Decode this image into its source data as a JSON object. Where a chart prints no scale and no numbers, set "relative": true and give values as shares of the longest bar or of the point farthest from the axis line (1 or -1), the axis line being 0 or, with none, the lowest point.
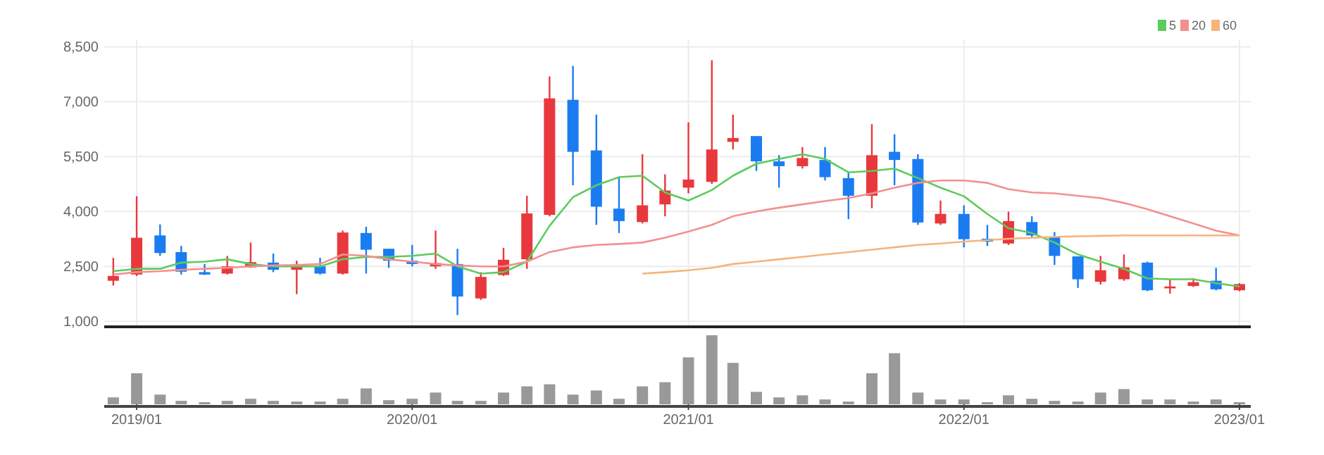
{
  "chart_data": [
    {
      "type": "candlestick",
      "x": [
        "2018-12",
        "2019-01",
        "2019-02",
        "2019-03",
        "2019-04",
        "2019-05",
        "2019-06",
        "2019-07",
        "2019-08",
        "2019-09",
        "2019-10",
        "2019-11",
        "2019-12",
        "2020-01",
        "2020-02",
        "2020-03",
        "2020-04",
        "2020-05",
        "2020-06",
        "2020-07",
        "2020-08",
        "2020-09",
        "2020-10",
        "2020-11",
        "2020-12",
        "2021-01",
        "2021-02",
        "2021-03",
        "2021-04",
        "2021-05",
        "2021-06",
        "2021-07",
        "2021-08",
        "2021-09",
        "2021-10",
        "2021-11",
        "2021-12",
        "2022-01",
        "2022-02",
        "2022-03",
        "2022-04",
        "2022-05",
        "2022-06",
        "2022-07",
        "2022-08",
        "2022-09",
        "2022-10",
        "2022-11",
        "2022-12",
        "2023-01"
      ],
      "ohlc": [
        [
          2108,
          2734,
          1978,
          2239
        ],
        [
          2278,
          4417,
          2239,
          3282
        ],
        [
          3347,
          3647,
          2787,
          2865
        ],
        [
          2891,
          3060,
          2278,
          2356
        ],
        [
          2343,
          2565,
          2265,
          2278
        ],
        [
          2304,
          2787,
          2278,
          2500
        ],
        [
          2474,
          3152,
          2461,
          2617
        ],
        [
          2604,
          2852,
          2343,
          2408
        ],
        [
          2408,
          2656,
          1743,
          2539
        ],
        [
          2500,
          2734,
          2278,
          2304
        ],
        [
          2304,
          3478,
          2278,
          3426
        ],
        [
          3413,
          3582,
          2304,
          2956
        ],
        [
          2982,
          2982,
          2461,
          2656
        ],
        [
          2656,
          3087,
          2500,
          2565
        ],
        [
          2500,
          3478,
          2434,
          2591
        ],
        [
          2565,
          2982,
          1170,
          1678
        ],
        [
          1626,
          2343,
          1587,
          2213
        ],
        [
          2265,
          3008,
          2239,
          2682
        ],
        [
          2695,
          4430,
          2434,
          3947
        ],
        [
          3908,
          7690,
          3869,
          7090
        ],
        [
          7051,
          7977,
          4717,
          5630
        ],
        [
          5669,
          6646,
          3634,
          4130
        ],
        [
          4078,
          4938,
          3412,
          3738
        ],
        [
          3712,
          5564,
          3673,
          4169
        ],
        [
          4195,
          5016,
          3869,
          4573
        ],
        [
          4651,
          6438,
          4495,
          4873
        ],
        [
          4808,
          8133,
          4756,
          5694
        ],
        [
          5903,
          6646,
          5694,
          6008
        ],
        [
          6060,
          6060,
          5108,
          5369
        ],
        [
          5369,
          5538,
          4651,
          5238
        ],
        [
          5238,
          5760,
          5173,
          5460
        ],
        [
          5408,
          5760,
          4847,
          4938
        ],
        [
          4912,
          5069,
          3791,
          4430
        ],
        [
          4430,
          6386,
          4091,
          5538
        ],
        [
          5630,
          6112,
          4717,
          5408
        ],
        [
          5434,
          5564,
          3634,
          3699
        ],
        [
          3673,
          4299,
          3634,
          3934
        ],
        [
          3934,
          4169,
          3021,
          3243
        ],
        [
          3256,
          3634,
          3060,
          3178
        ],
        [
          3126,
          3999,
          3087,
          3738
        ],
        [
          3712,
          3869,
          3308,
          3347
        ],
        [
          3308,
          3439,
          2539,
          2787
        ],
        [
          2774,
          2774,
          1913,
          2148
        ],
        [
          2082,
          2787,
          2004,
          2395
        ],
        [
          2148,
          2826,
          2108,
          2474
        ],
        [
          2604,
          2630,
          1822,
          1848
        ],
        [
          1900,
          2148,
          1757,
          1952
        ],
        [
          1965,
          2174,
          1939,
          2069
        ],
        [
          2108,
          2461,
          1848,
          1874
        ],
        [
          1848,
          2043,
          1822,
          2017
        ]
      ],
      "colors": [
        "#e8383d",
        "#e8383d",
        "#1b7cf2",
        "#1b7cf2",
        "#1b7cf2",
        "#e8383d",
        "#e8383d",
        "#1b7cf2",
        "#e8383d",
        "#1b7cf2",
        "#e8383d",
        "#1b7cf2",
        "#1b7cf2",
        "#1b7cf2",
        "#e8383d",
        "#1b7cf2",
        "#e8383d",
        "#e8383d",
        "#e8383d",
        "#e8383d",
        "#1b7cf2",
        "#1b7cf2",
        "#1b7cf2",
        "#e8383d",
        "#e8383d",
        "#e8383d",
        "#e8383d",
        "#e8383d",
        "#1b7cf2",
        "#1b7cf2",
        "#e8383d",
        "#1b7cf2",
        "#1b7cf2",
        "#e8383d",
        "#1b7cf2",
        "#1b7cf2",
        "#e8383d",
        "#1b7cf2",
        "#1b7cf2",
        "#e8383d",
        "#1b7cf2",
        "#1b7cf2",
        "#1b7cf2",
        "#e8383d",
        "#e8383d",
        "#1b7cf2",
        "#e8383d",
        "#e8383d",
        "#1b7cf2",
        "#e8383d"
      ],
      "series": [
        {
          "name": "5",
          "type": "line",
          "color": "#5ccc5c",
          "values": [
            2369,
            2434,
            2434,
            2604,
            2630,
            2695,
            2565,
            2500,
            2500,
            2500,
            2695,
            2760,
            2760,
            2787,
            2852,
            2500,
            2304,
            2343,
            2630,
            3608,
            4391,
            4717,
            4938,
            4977,
            4521,
            4299,
            4586,
            4977,
            5304,
            5434,
            5564,
            5434,
            5069,
            5108,
            5173,
            4912,
            4651,
            4417,
            3934,
            3543,
            3412,
            3152,
            2826,
            2630,
            2434,
            2174,
            2148,
            2148,
            2043,
            1952
          ]
        },
        {
          "name": "20",
          "type": "line",
          "color": "#f29090",
          "values": [
            2278,
            2343,
            2369,
            2408,
            2434,
            2461,
            2500,
            2526,
            2539,
            2565,
            2826,
            2787,
            2695,
            2630,
            2565,
            2526,
            2500,
            2500,
            2630,
            2891,
            3021,
            3087,
            3113,
            3152,
            3282,
            3452,
            3634,
            3869,
            3999,
            4104,
            4195,
            4286,
            4365,
            4495,
            4651,
            4782,
            4847,
            4847,
            4782,
            4612,
            4521,
            4495,
            4430,
            4365,
            4234,
            4065,
            3869,
            3673,
            3478,
            3347
          ]
        },
        {
          "name": "60",
          "type": "line",
          "color": "#f6b47a",
          "values": [
            null,
            null,
            null,
            null,
            null,
            null,
            null,
            null,
            null,
            null,
            null,
            null,
            null,
            null,
            null,
            null,
            null,
            null,
            null,
            null,
            null,
            null,
            null,
            2304,
            2343,
            2395,
            2461,
            2565,
            2630,
            2695,
            2760,
            2826,
            2891,
            2956,
            3021,
            3087,
            3126,
            3178,
            3217,
            3256,
            3282,
            3308,
            3321,
            3334,
            3347,
            3347,
            3347,
            3347,
            3347,
            3347
          ]
        }
      ],
      "xlim": [
        "2018-11-19",
        "2023-01-16"
      ],
      "xticks": [
        {
          "value": "2019-01",
          "label": null
        },
        {
          "value": "2020-01",
          "label": null
        },
        {
          "value": "2021-01",
          "label": null
        },
        {
          "value": "2022-01",
          "label": null
        },
        {
          "value": "2023-01",
          "label": null
        }
      ],
      "ylim": [
        850,
        8700
      ],
      "yticks": [
        {
          "value": 1000,
          "label": "1,000"
        },
        {
          "value": 2500,
          "label": "2,500"
        },
        {
          "value": 4000,
          "label": "4,000"
        },
        {
          "value": 5500,
          "label": "5,500"
        },
        {
          "value": 7000,
          "label": "7,000"
        },
        {
          "value": 8500,
          "label": "8,500"
        }
      ],
      "grid": true,
      "legend": "top right",
      "tick_labels": "y"
    },
    {
      "type": "bar",
      "relative": true,
      "color": "#999999",
      "x": [
        "2018-12",
        "2019-01",
        "2019-02",
        "2019-03",
        "2019-04",
        "2019-05",
        "2019-06",
        "2019-07",
        "2019-08",
        "2019-09",
        "2019-10",
        "2019-11",
        "2019-12",
        "2020-01",
        "2020-02",
        "2020-03",
        "2020-04",
        "2020-05",
        "2020-06",
        "2020-07",
        "2020-08",
        "2020-09",
        "2020-10",
        "2020-11",
        "2020-12",
        "2021-01",
        "2021-02",
        "2021-03",
        "2021-04",
        "2021-05",
        "2021-06",
        "2021-07",
        "2021-08",
        "2021-09",
        "2021-10",
        "2021-11",
        "2021-12",
        "2022-01",
        "2022-02",
        "2022-03",
        "2022-04",
        "2022-05",
        "2022-06",
        "2022-07",
        "2022-08",
        "2022-09",
        "2022-10",
        "2022-11",
        "2022-12",
        "2023-01"
      ],
      "values": [
        0.1,
        0.45,
        0.14,
        0.05,
        0.03,
        0.05,
        0.08,
        0.05,
        0.04,
        0.04,
        0.08,
        0.23,
        0.06,
        0.08,
        0.17,
        0.05,
        0.05,
        0.17,
        0.26,
        0.29,
        0.14,
        0.2,
        0.08,
        0.26,
        0.32,
        0.68,
        1,
        0.6,
        0.18,
        0.1,
        0.13,
        0.07,
        0.04,
        0.45,
        0.74,
        0.17,
        0.07,
        0.07,
        0.03,
        0.13,
        0.08,
        0.05,
        0.04,
        0.17,
        0.22,
        0.07,
        0.07,
        0.04,
        0.07,
        0.03
      ],
      "xlim": [
        "2018-11-19",
        "2023-01-16"
      ],
      "xticks": [
        {
          "value": "2019-01",
          "label": "2019/01"
        },
        {
          "value": "2020-01",
          "label": "2020/01"
        },
        {
          "value": "2021-01",
          "label": "2021/01"
        },
        {
          "value": "2022-01",
          "label": "2022/01"
        },
        {
          "value": "2023-01",
          "label": "2023/01"
        }
      ],
      "tick_labels": "x"
    }
  ]
}
